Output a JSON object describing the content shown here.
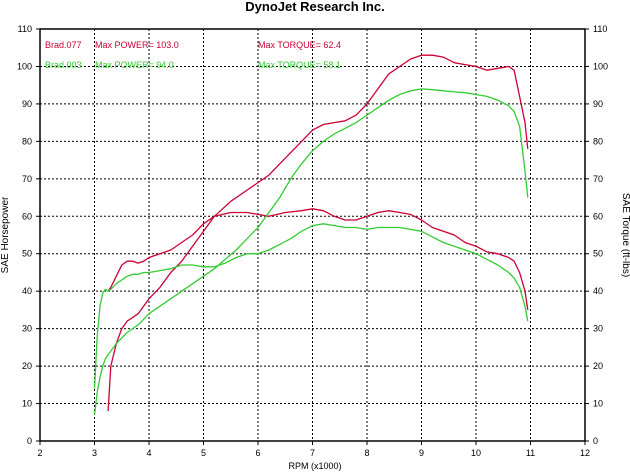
{
  "chart_data": {
    "type": "line",
    "title": "DynoJet Research Inc.",
    "xlabel": "RPM (x1000)",
    "ylabel_left": "SAE Horsepower",
    "ylabel_right": "SAE Torque (ft-lbs)",
    "xlim": [
      2,
      12
    ],
    "ylim": [
      0,
      110
    ],
    "x_ticks": [
      "2",
      "3",
      "4",
      "5",
      "6",
      "7",
      "8",
      "9",
      "10",
      "11",
      "12"
    ],
    "y_ticks": [
      "0",
      "10",
      "20",
      "30",
      "40",
      "50",
      "60",
      "70",
      "80",
      "90",
      "100",
      "110"
    ],
    "grid": true,
    "legend": [
      {
        "run": "Brad.077",
        "power": "Max POWER= 103.0",
        "torque": "Max TORQUE= 62.4",
        "color": "#cc0033"
      },
      {
        "run": "Brad.003",
        "power": "Max POWER= 94.0",
        "torque": "Max TORQUE= 58.1",
        "color": "#33cc33"
      }
    ],
    "series": [
      {
        "key": "brad077_power",
        "color": "#cc0033",
        "x": [
          3.25,
          3.3,
          3.4,
          3.5,
          3.6,
          3.7,
          3.8,
          3.9,
          4.0,
          4.2,
          4.4,
          4.6,
          4.8,
          5.0,
          5.2,
          5.5,
          5.8,
          6.0,
          6.2,
          6.4,
          6.6,
          6.8,
          7.0,
          7.2,
          7.4,
          7.6,
          7.8,
          8.0,
          8.2,
          8.4,
          8.6,
          8.8,
          9.0,
          9.2,
          9.4,
          9.6,
          9.8,
          10.0,
          10.2,
          10.4,
          10.6,
          10.7,
          10.8,
          10.9,
          10.95
        ],
        "y": [
          8,
          20,
          26,
          30,
          32,
          33,
          34,
          36,
          38,
          41,
          45,
          48,
          52,
          56,
          60,
          64,
          67,
          69,
          71,
          74,
          77,
          80,
          83,
          84.5,
          85,
          85.5,
          87,
          90,
          94,
          98,
          100,
          102,
          103,
          103,
          102.5,
          101,
          100.5,
          100,
          99,
          99.5,
          100,
          99,
          92,
          85,
          78
        ]
      },
      {
        "key": "brad077_torque",
        "color": "#cc0033",
        "x": [
          3.25,
          3.3,
          3.4,
          3.5,
          3.6,
          3.7,
          3.8,
          3.9,
          4.0,
          4.2,
          4.4,
          4.6,
          4.8,
          5.0,
          5.2,
          5.5,
          5.8,
          6.0,
          6.2,
          6.5,
          6.8,
          7.0,
          7.2,
          7.4,
          7.6,
          7.8,
          8.0,
          8.2,
          8.4,
          8.6,
          8.8,
          9.0,
          9.2,
          9.4,
          9.6,
          9.8,
          10.0,
          10.2,
          10.4,
          10.6,
          10.7,
          10.8,
          10.9,
          10.95
        ],
        "y": [
          40,
          41,
          44,
          47,
          48,
          48,
          47.5,
          48,
          49,
          50,
          51,
          53,
          55,
          58,
          60,
          61,
          61,
          60.5,
          60,
          61,
          61.5,
          62,
          61.5,
          60,
          59,
          59,
          60,
          61,
          61.5,
          61,
          60.5,
          59,
          57,
          56,
          55,
          53,
          52,
          50.5,
          50,
          49,
          48,
          45,
          40,
          35
        ]
      },
      {
        "key": "brad003_power",
        "color": "#33cc33",
        "x": [
          3.0,
          3.05,
          3.1,
          3.15,
          3.2,
          3.3,
          3.4,
          3.5,
          3.6,
          3.7,
          3.8,
          3.9,
          4.0,
          4.2,
          4.4,
          4.6,
          4.8,
          5.0,
          5.2,
          5.4,
          5.6,
          5.8,
          6.0,
          6.2,
          6.4,
          6.6,
          6.8,
          7.0,
          7.2,
          7.4,
          7.6,
          7.8,
          8.0,
          8.2,
          8.4,
          8.6,
          8.8,
          9.0,
          9.2,
          9.4,
          9.6,
          9.8,
          10.0,
          10.2,
          10.4,
          10.6,
          10.7,
          10.8,
          10.9,
          10.95
        ],
        "y": [
          7,
          13,
          17,
          20,
          22,
          24,
          26,
          27.5,
          29,
          30,
          31,
          32.5,
          34,
          36,
          38,
          40,
          42,
          44,
          46,
          48.5,
          51,
          54,
          57,
          61,
          65,
          70,
          74,
          77.5,
          80,
          82,
          83.5,
          85,
          87,
          89,
          91,
          92.5,
          93.5,
          94,
          93.8,
          93.5,
          93.2,
          93,
          92.5,
          92,
          91,
          89.5,
          88,
          84,
          72,
          65
        ]
      },
      {
        "key": "brad003_torque",
        "color": "#33cc33",
        "x": [
          3.0,
          3.05,
          3.1,
          3.15,
          3.2,
          3.25,
          3.3,
          3.4,
          3.5,
          3.6,
          3.7,
          3.8,
          3.9,
          4.0,
          4.2,
          4.4,
          4.6,
          4.8,
          5.0,
          5.2,
          5.4,
          5.6,
          5.8,
          6.0,
          6.2,
          6.4,
          6.6,
          6.8,
          7.0,
          7.2,
          7.4,
          7.6,
          7.8,
          8.0,
          8.2,
          8.4,
          8.6,
          8.8,
          9.0,
          9.2,
          9.4,
          9.6,
          9.8,
          10.0,
          10.2,
          10.4,
          10.6,
          10.7,
          10.8,
          10.9,
          10.95
        ],
        "y": [
          14,
          28,
          36,
          39.5,
          40.5,
          40,
          40.5,
          42,
          43,
          44,
          44.5,
          44.5,
          45,
          45,
          45.5,
          46,
          47,
          47,
          46.5,
          46.5,
          47.5,
          49,
          50,
          50,
          51,
          52.5,
          54,
          56,
          57.5,
          58,
          57.5,
          57,
          57,
          56.5,
          57,
          57,
          57,
          56.5,
          56,
          54.5,
          53,
          52,
          51,
          50,
          48.5,
          47,
          45,
          43.5,
          41,
          36,
          32
        ]
      }
    ]
  }
}
